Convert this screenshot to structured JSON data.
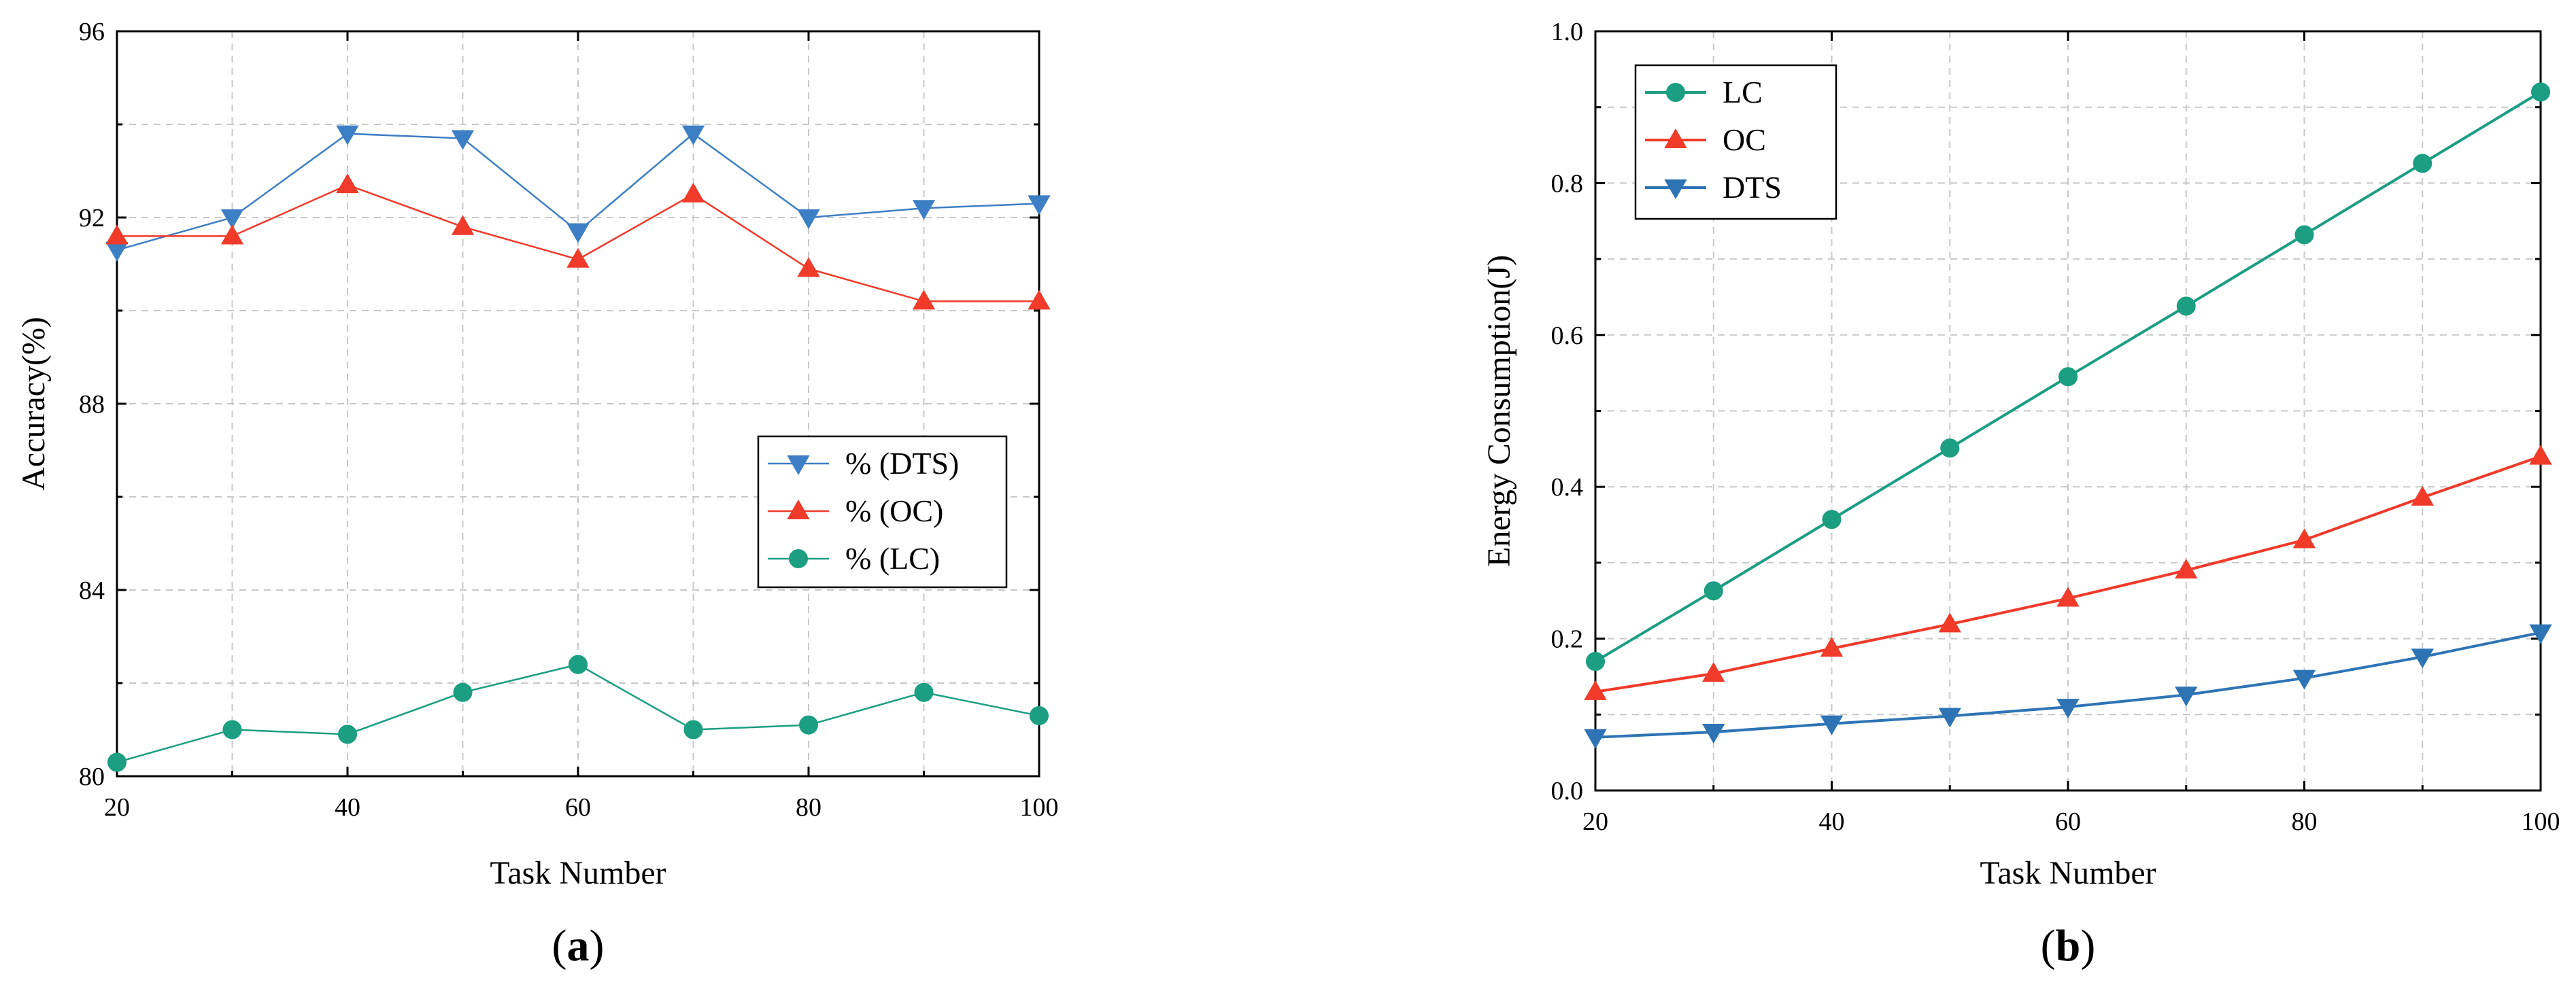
{
  "chart_data": [
    {
      "type": "line",
      "panel_label": "(a)",
      "panel_label_letter": "a",
      "xlabel": "Task Number",
      "ylabel": "Accuracy(%)",
      "x": [
        20,
        30,
        40,
        50,
        60,
        70,
        80,
        90,
        100
      ],
      "xlim": [
        20,
        100
      ],
      "ylim": [
        80,
        96
      ],
      "xticks": [
        20,
        40,
        60,
        80,
        100
      ],
      "yticks": [
        80,
        84,
        88,
        92,
        96
      ],
      "grid": true,
      "legend_position": "center-right",
      "series": [
        {
          "name": "% (DTS)",
          "color": "#3d7fc4",
          "marker": "triangle-down",
          "values": [
            91.3,
            92.0,
            93.8,
            93.7,
            91.7,
            93.8,
            92.0,
            92.2,
            92.3
          ]
        },
        {
          "name": "% (OC)",
          "color": "#f03a2a",
          "marker": "triangle-up",
          "values": [
            91.6,
            91.6,
            92.7,
            91.8,
            91.1,
            92.5,
            90.9,
            90.2,
            90.2
          ]
        },
        {
          "name": "% (LC)",
          "color": "#1b9e81",
          "marker": "circle",
          "values": [
            80.3,
            81.0,
            80.9,
            81.8,
            82.4,
            81.0,
            81.1,
            81.8,
            81.3
          ]
        }
      ]
    },
    {
      "type": "line",
      "panel_label": "(b)",
      "panel_label_letter": "b",
      "xlabel": "Task Number",
      "ylabel": "Energy Consumption(J)",
      "x": [
        20,
        30,
        40,
        50,
        60,
        70,
        80,
        90,
        100
      ],
      "xlim": [
        20,
        100
      ],
      "ylim": [
        0.0,
        1.0
      ],
      "xticks": [
        20,
        40,
        60,
        80,
        100
      ],
      "yticks": [
        0.0,
        0.2,
        0.4,
        0.6,
        0.8,
        1.0
      ],
      "ytick_labels": [
        "0.0",
        "0.2",
        "0.4",
        "0.6",
        "0.8",
        "1.0"
      ],
      "grid": true,
      "legend_position": "top-left",
      "series": [
        {
          "name": "LC",
          "color": "#1b9e81",
          "marker": "circle",
          "values": [
            0.17,
            0.263,
            0.357,
            0.451,
            0.545,
            0.638,
            0.732,
            0.826,
            0.92
          ]
        },
        {
          "name": "OC",
          "color": "#f03a2a",
          "marker": "triangle-up",
          "values": [
            0.13,
            0.154,
            0.187,
            0.219,
            0.253,
            0.29,
            0.33,
            0.386,
            0.44
          ]
        },
        {
          "name": "DTS",
          "color": "#2e74b5",
          "marker": "triangle-down",
          "values": [
            0.07,
            0.077,
            0.088,
            0.098,
            0.11,
            0.126,
            0.148,
            0.176,
            0.208
          ]
        }
      ]
    }
  ]
}
